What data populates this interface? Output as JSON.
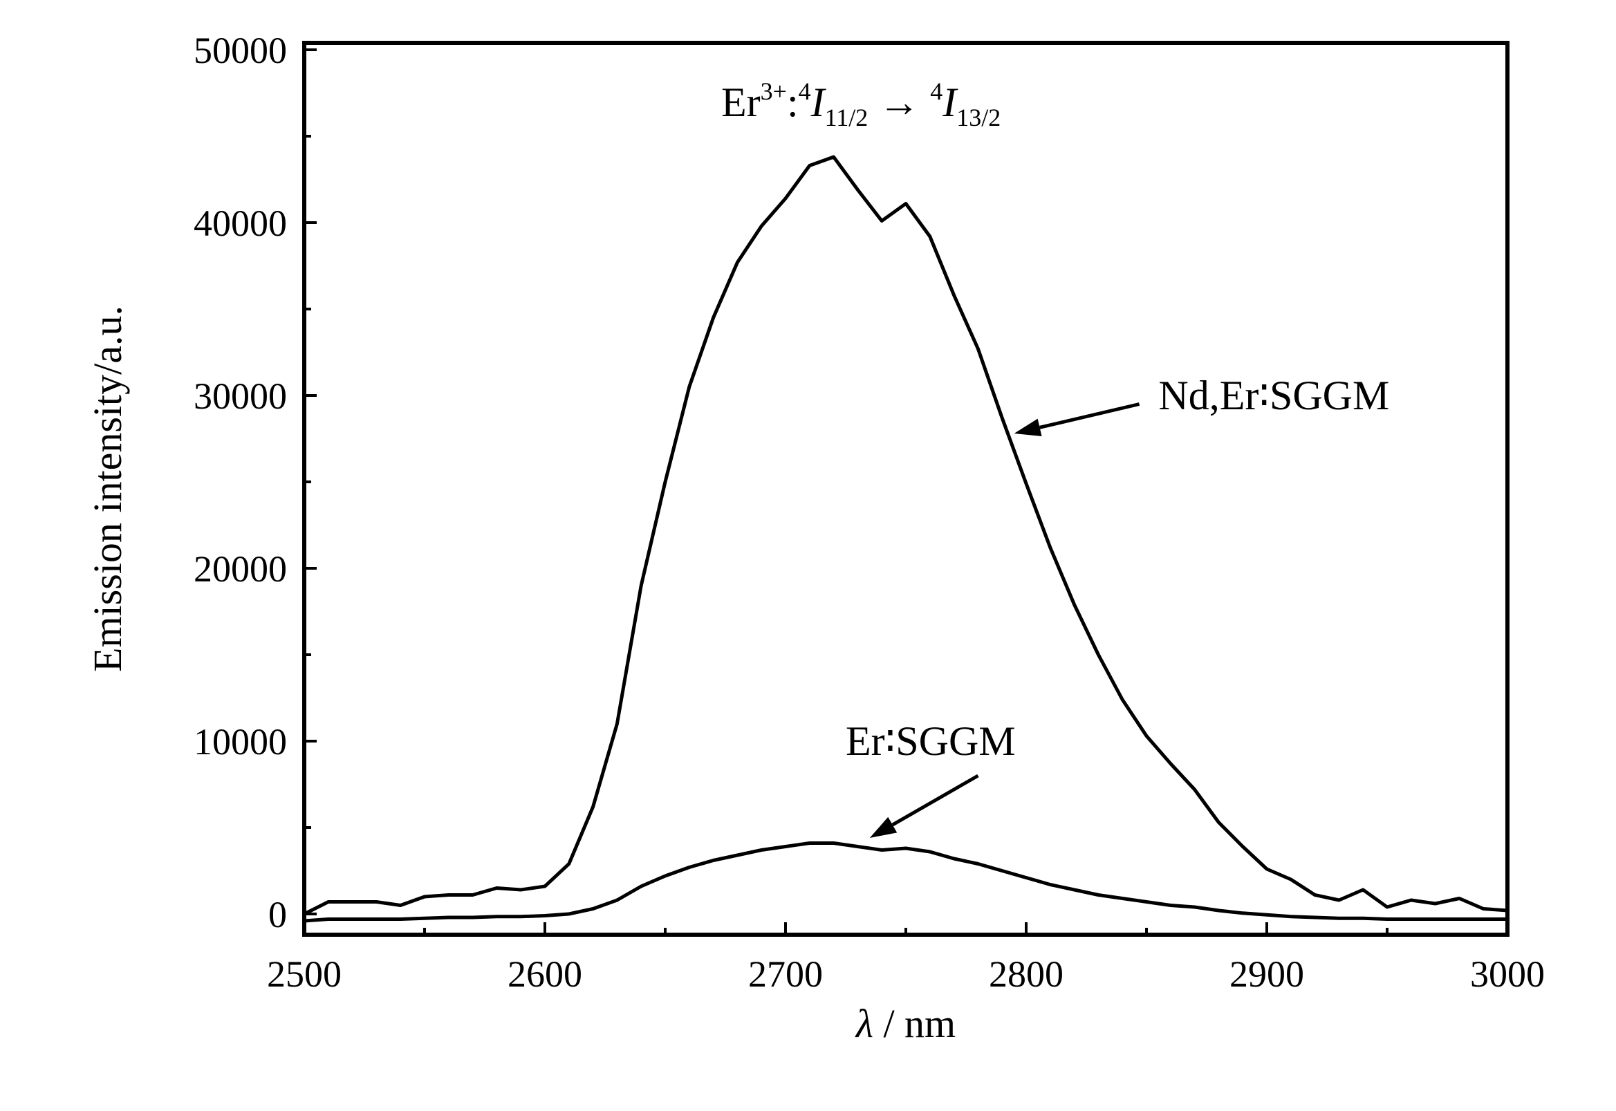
{
  "chart_data": {
    "type": "line",
    "title": "",
    "xlabel_symbol": "λ",
    "xlabel_unit": " / nm",
    "ylabel": "Emission intensity/a.u.",
    "xlim": [
      2500,
      3000
    ],
    "ylim": [
      -500,
      50000
    ],
    "x_ticks": [
      2500,
      2600,
      2700,
      2800,
      2900,
      3000
    ],
    "x_tick_labels": [
      "2500",
      "2600",
      "2700",
      "2800",
      "2900",
      "3000"
    ],
    "y_ticks": [
      0,
      10000,
      20000,
      30000,
      40000,
      50000
    ],
    "y_tick_labels": [
      "0",
      "10000",
      "20000",
      "30000",
      "40000",
      "50000"
    ],
    "grid": false,
    "legend": "none",
    "annotation": {
      "base": "Er",
      "charge": "3+",
      "colon": ":",
      "level1_sup": "4",
      "level1_letter": "I",
      "level1_sub": "11/2",
      "arrow": " → ",
      "level2_sup": "4",
      "level2_letter": "I",
      "level2_sub": "13/2"
    },
    "series": [
      {
        "name": "Nd,Er∶SGGM",
        "x": [
          2500,
          2510,
          2520,
          2530,
          2540,
          2550,
          2560,
          2570,
          2580,
          2590,
          2600,
          2610,
          2620,
          2630,
          2640,
          2650,
          2660,
          2670,
          2680,
          2690,
          2700,
          2710,
          2720,
          2730,
          2740,
          2750,
          2760,
          2770,
          2780,
          2790,
          2800,
          2810,
          2820,
          2830,
          2840,
          2850,
          2860,
          2870,
          2880,
          2890,
          2900,
          2910,
          2920,
          2930,
          2940,
          2950,
          2960,
          2970,
          2980,
          2990,
          3000
        ],
        "values": [
          0,
          700,
          700,
          700,
          500,
          1000,
          1100,
          1100,
          1500,
          1400,
          1600,
          2900,
          6200,
          11000,
          19000,
          25000,
          30500,
          34500,
          37700,
          39800,
          41400,
          43300,
          43800,
          41900,
          40100,
          41100,
          39200,
          35800,
          32700,
          28700,
          24900,
          21200,
          17900,
          15000,
          12400,
          10300,
          8700,
          7200,
          5300,
          3900,
          2600,
          2000,
          1100,
          800,
          1400,
          400,
          800,
          600,
          900,
          300,
          200
        ]
      },
      {
        "name": "Er∶SGGM",
        "x": [
          2500,
          2510,
          2520,
          2530,
          2540,
          2550,
          2560,
          2570,
          2580,
          2590,
          2600,
          2610,
          2620,
          2630,
          2640,
          2650,
          2660,
          2670,
          2680,
          2690,
          2700,
          2710,
          2720,
          2730,
          2740,
          2750,
          2760,
          2770,
          2780,
          2790,
          2800,
          2810,
          2820,
          2830,
          2840,
          2850,
          2860,
          2870,
          2880,
          2890,
          2900,
          2910,
          2920,
          2930,
          2940,
          2950,
          2960,
          2970,
          2980,
          2990,
          3000
        ],
        "values": [
          -400,
          -300,
          -300,
          -300,
          -300,
          -250,
          -200,
          -200,
          -150,
          -150,
          -100,
          0,
          300,
          800,
          1600,
          2200,
          2700,
          3100,
          3400,
          3700,
          3900,
          4100,
          4100,
          3900,
          3700,
          3800,
          3600,
          3200,
          2900,
          2500,
          2100,
          1700,
          1400,
          1100,
          900,
          700,
          500,
          400,
          200,
          50,
          -50,
          -150,
          -200,
          -250,
          -250,
          -300,
          -300,
          -300,
          -300,
          -300,
          -300
        ]
      }
    ],
    "series_labels": [
      {
        "text": "Nd,Er∶SGGM",
        "label_anchor": [
          2855,
          30000
        ],
        "arrow_from": [
          2847,
          29500
        ],
        "arrow_to": [
          2795,
          27800
        ]
      },
      {
        "text": "Er∶SGGM",
        "label_anchor": [
          2725,
          10000
        ],
        "arrow_from": [
          2780,
          8000
        ],
        "arrow_to": [
          2735,
          4400
        ]
      }
    ]
  }
}
